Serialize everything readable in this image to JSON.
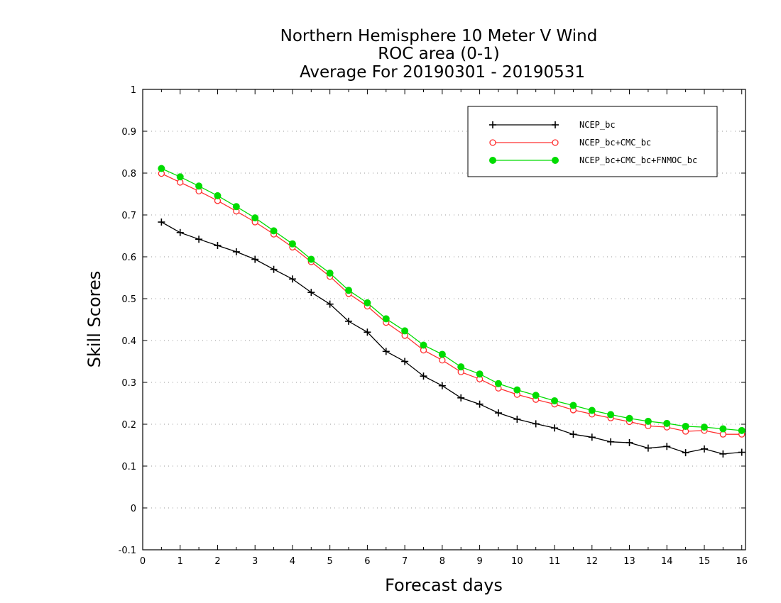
{
  "chart_data": {
    "type": "line",
    "title": [
      "Northern Hemisphere 10 Meter V Wind",
      "ROC area (0-1)",
      "Average For 20190301 - 20190531"
    ],
    "xlabel": "Forecast days",
    "ylabel": "Skill Scores",
    "xlim": [
      0,
      16.1
    ],
    "ylim": [
      -0.1,
      1
    ],
    "xticks": [
      0,
      1,
      2,
      3,
      4,
      5,
      6,
      7,
      8,
      9,
      10,
      11,
      12,
      13,
      14,
      15,
      16
    ],
    "yticks": [
      -0.1,
      0,
      0.1,
      0.2,
      0.3,
      0.4,
      0.5,
      0.6,
      0.7,
      0.8,
      0.9,
      1
    ],
    "ytick_labels": [
      "-0.1",
      "0",
      "0.1",
      "0.2",
      "0.3",
      "0.4",
      "0.5",
      "0.6",
      "0.7",
      "0.8",
      "0.9",
      "1"
    ],
    "grid": "horizontal dotted",
    "legend_position": "top-right",
    "x": [
      0.5,
      1,
      1.5,
      2,
      2.5,
      3,
      3.5,
      4,
      4.5,
      5,
      5.5,
      6,
      6.5,
      7,
      7.5,
      8,
      8.5,
      9,
      9.5,
      10,
      10.5,
      11,
      11.5,
      12,
      12.5,
      13,
      13.5,
      14,
      14.5,
      15,
      15.5,
      16
    ],
    "series": [
      {
        "name": "NCEP_bc",
        "color": "#000000",
        "marker": "plus",
        "values": [
          0.683,
          0.658,
          0.642,
          0.627,
          0.612,
          0.594,
          0.57,
          0.547,
          0.515,
          0.487,
          0.446,
          0.42,
          0.374,
          0.35,
          0.315,
          0.292,
          0.263,
          0.248,
          0.227,
          0.212,
          0.201,
          0.191,
          0.176,
          0.169,
          0.158,
          0.156,
          0.143,
          0.147,
          0.132,
          0.141,
          0.129,
          0.133
        ]
      },
      {
        "name": "NCEP_bc+CMC_bc",
        "color": "#ff3030",
        "marker": "open-circle",
        "values": [
          0.799,
          0.778,
          0.757,
          0.734,
          0.709,
          0.683,
          0.654,
          0.623,
          0.588,
          0.553,
          0.512,
          0.482,
          0.443,
          0.412,
          0.377,
          0.353,
          0.325,
          0.308,
          0.286,
          0.271,
          0.259,
          0.248,
          0.234,
          0.224,
          0.215,
          0.206,
          0.196,
          0.193,
          0.183,
          0.185,
          0.176,
          0.176
        ]
      },
      {
        "name": "NCEP_bc+CMC_bc+FNMOC_bc",
        "color": "#00dc00",
        "marker": "filled-circle",
        "values": [
          0.811,
          0.791,
          0.769,
          0.746,
          0.72,
          0.693,
          0.662,
          0.631,
          0.594,
          0.561,
          0.52,
          0.49,
          0.452,
          0.423,
          0.389,
          0.367,
          0.337,
          0.32,
          0.297,
          0.282,
          0.269,
          0.256,
          0.245,
          0.233,
          0.223,
          0.214,
          0.207,
          0.202,
          0.195,
          0.193,
          0.189,
          0.185
        ]
      }
    ]
  }
}
